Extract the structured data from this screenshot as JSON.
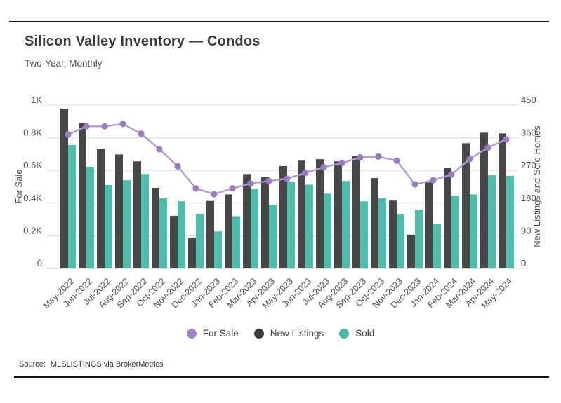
{
  "page": {
    "title": "Silicon Valley Inventory — Condos",
    "subtitle": "Two-Year, Monthly"
  },
  "source": {
    "label": "Source:",
    "text": "MLSLISTINGS via BrokerMetrics"
  },
  "legend": {
    "items": [
      {
        "label": "For Sale",
        "color": "#a583c9"
      },
      {
        "label": "New Listings",
        "color": "#3d3d3d"
      },
      {
        "label": "Sold",
        "color": "#49b9a8"
      }
    ]
  },
  "colors": {
    "grid": "#dbdbdb",
    "baseline": "#c6c6c6",
    "axis_text": "#4d4d4d",
    "line": "#b29cd6",
    "point": "#9d7bc1",
    "bar_dark": "#474747",
    "bar_teal": "#4dbcab"
  },
  "chart_data": {
    "type": "combo",
    "title": "Silicon Valley Inventory — Condos",
    "subtitle": "Two-Year, Monthly",
    "grid": true,
    "legend_position": "bottom",
    "categories": [
      "May-2022",
      "Jun-2022",
      "Jul-2022",
      "Aug-2022",
      "Sep-2022",
      "Oct-2022",
      "Nov-2022",
      "Dec-2022",
      "Jan-2023",
      "Feb-2023",
      "Mar-2023",
      "Apr-2023",
      "May-2023",
      "Jun-2023",
      "Jul-2023",
      "Aug-2023",
      "Sep-2023",
      "Oct-2023",
      "Nov-2023",
      "Dec-2023",
      "Jan-2024",
      "Feb-2024",
      "Mar-2024",
      "Apr-2024",
      "May-2024"
    ],
    "series": [
      {
        "name": "For Sale",
        "type": "line",
        "axis": "left",
        "values": [
          820,
          870,
          870,
          885,
          825,
          730,
          625,
          490,
          455,
          490,
          520,
          535,
          550,
          585,
          620,
          645,
          680,
          685,
          660,
          515,
          540,
          575,
          670,
          740,
          790
        ]
      },
      {
        "name": "New Listings",
        "type": "bar",
        "axis": "right",
        "values": [
          440,
          400,
          330,
          314,
          295,
          222,
          145,
          85,
          186,
          204,
          260,
          251,
          282,
          297,
          301,
          295,
          310,
          249,
          187,
          93,
          237,
          278,
          345,
          374,
          372
        ]
      },
      {
        "name": "Sold",
        "type": "bar",
        "axis": "right",
        "values": [
          340,
          280,
          230,
          243,
          260,
          193,
          185,
          150,
          102,
          144,
          219,
          175,
          239,
          231,
          206,
          241,
          185,
          193,
          149,
          162,
          122,
          201,
          204,
          257,
          255
        ]
      }
    ],
    "left_axis": {
      "title": "For Sale",
      "max": 1000,
      "tick_values": [
        0,
        200,
        400,
        600,
        800,
        1000
      ],
      "ticks": [
        "0",
        "0.2K",
        "0.4K",
        "0.6K",
        "0.8K",
        "1K"
      ]
    },
    "right_axis": {
      "title": "New Listings and Sold Homes",
      "max": 450,
      "tick_values": [
        0,
        90,
        180,
        270,
        360,
        450
      ],
      "ticks": [
        "0",
        "90",
        "180",
        "270",
        "360",
        "450"
      ]
    }
  }
}
